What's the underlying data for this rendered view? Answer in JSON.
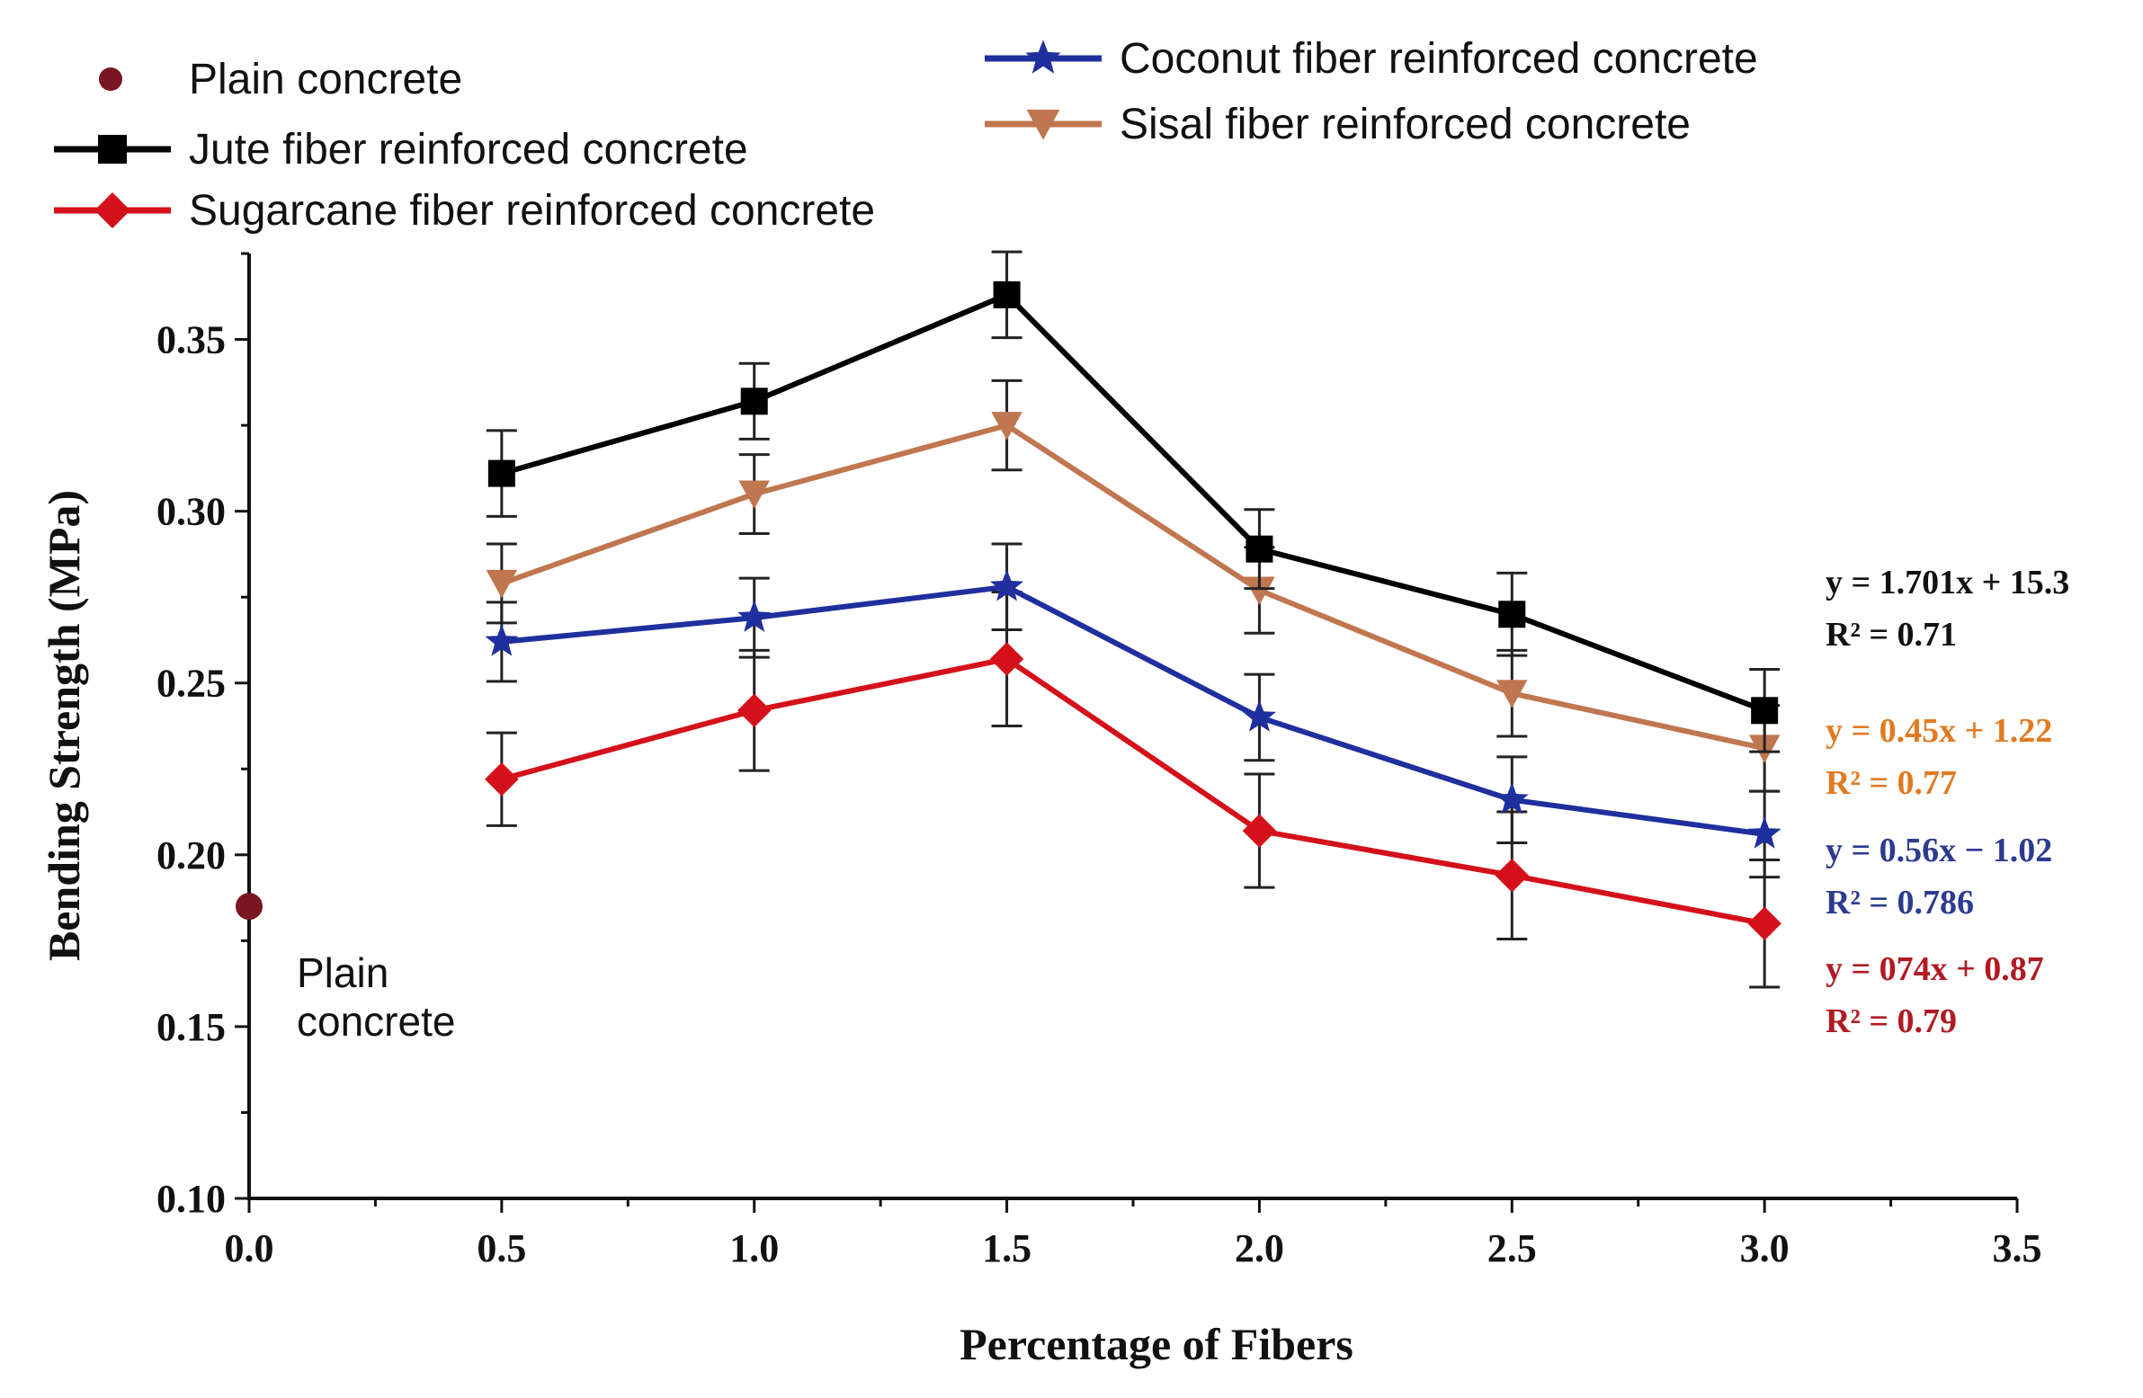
{
  "chart_data": {
    "type": "line",
    "title": "",
    "xlabel": "Percentage of Fibers",
    "ylabel": "Bending Strength (MPa)",
    "xlim": [
      0,
      3.5
    ],
    "ylim": [
      0.1,
      0.375
    ],
    "x_ticks": [
      0.0,
      0.5,
      1.0,
      1.5,
      2.0,
      2.5,
      3.0,
      3.5
    ],
    "x_tick_labels": [
      "0.0",
      "0.5",
      "1.0",
      "1.5",
      "2.0",
      "2.5",
      "3.0",
      "3.5"
    ],
    "y_ticks": [
      0.1,
      0.15,
      0.2,
      0.25,
      0.3,
      0.35
    ],
    "y_tick_labels": [
      "0.10",
      "0.15",
      "0.20",
      "0.25",
      "0.30",
      "0.35"
    ],
    "grid": false,
    "x": [
      0.5,
      1.0,
      1.5,
      2.0,
      2.5,
      3.0
    ],
    "plain": {
      "name": "Plain concrete",
      "x": 0.0,
      "y": 0.185,
      "color": "#7a1522",
      "annotation": [
        "Plain",
        "concrete"
      ]
    },
    "series": [
      {
        "name": "Jute fiber reinforced concrete",
        "color": "#000000",
        "marker": "square",
        "values": [
          0.311,
          0.332,
          0.363,
          0.289,
          0.27,
          0.242
        ],
        "errors": [
          0.0125,
          0.011,
          0.0125,
          0.0115,
          0.012,
          0.012
        ],
        "equation": "y = 1.701x + 15.3",
        "r2": "R² = 0.71",
        "eq_color": "#111111"
      },
      {
        "name": "Sisal fiber reinforced concrete",
        "color": "#c0764f",
        "marker": "triangle-down",
        "values": [
          0.279,
          0.305,
          0.325,
          0.277,
          0.247,
          0.231
        ],
        "errors": [
          0.0115,
          0.0115,
          0.013,
          0.0125,
          0.0125,
          0.0125
        ],
        "equation": "y = 0.45x + 1.22",
        "r2": "R² = 0.77",
        "eq_color": "#e07b22"
      },
      {
        "name": "Coconut fiber reinforced concrete",
        "color": "#1f2f9e",
        "marker": "star",
        "values": [
          0.262,
          0.269,
          0.278,
          0.24,
          0.216,
          0.206
        ],
        "errors": [
          0.0115,
          0.0115,
          0.0125,
          0.0125,
          0.0125,
          0.0125
        ],
        "equation": "y = 0.56x − 1.02",
        "r2": "R² = 0.786",
        "eq_color": "#2c3b8f"
      },
      {
        "name": "Sugarcane fiber reinforced concrete",
        "color": "#d4111a",
        "marker": "diamond",
        "values": [
          0.222,
          0.242,
          0.257,
          0.207,
          0.194,
          0.18
        ],
        "errors": [
          0.0135,
          0.0175,
          0.0195,
          0.0165,
          0.0185,
          0.0185
        ],
        "equation": "y = 074x + 0.87",
        "r2": "R² = 0.79",
        "eq_color": "#b01a22"
      }
    ],
    "legend": [
      {
        "label": "Plain concrete",
        "marker": "dot",
        "color": "#7a1522"
      },
      {
        "label": "Jute fiber reinforced concrete",
        "marker": "square",
        "color": "#000000"
      },
      {
        "label": "Sugarcane fiber reinforced concrete",
        "marker": "diamond",
        "color": "#d4111a"
      },
      {
        "label": "Coconut fiber reinforced concrete",
        "marker": "star",
        "color": "#1f2f9e"
      },
      {
        "label": "Sisal fiber reinforced concrete",
        "marker": "triangle-down",
        "color": "#c0764f"
      }
    ]
  }
}
